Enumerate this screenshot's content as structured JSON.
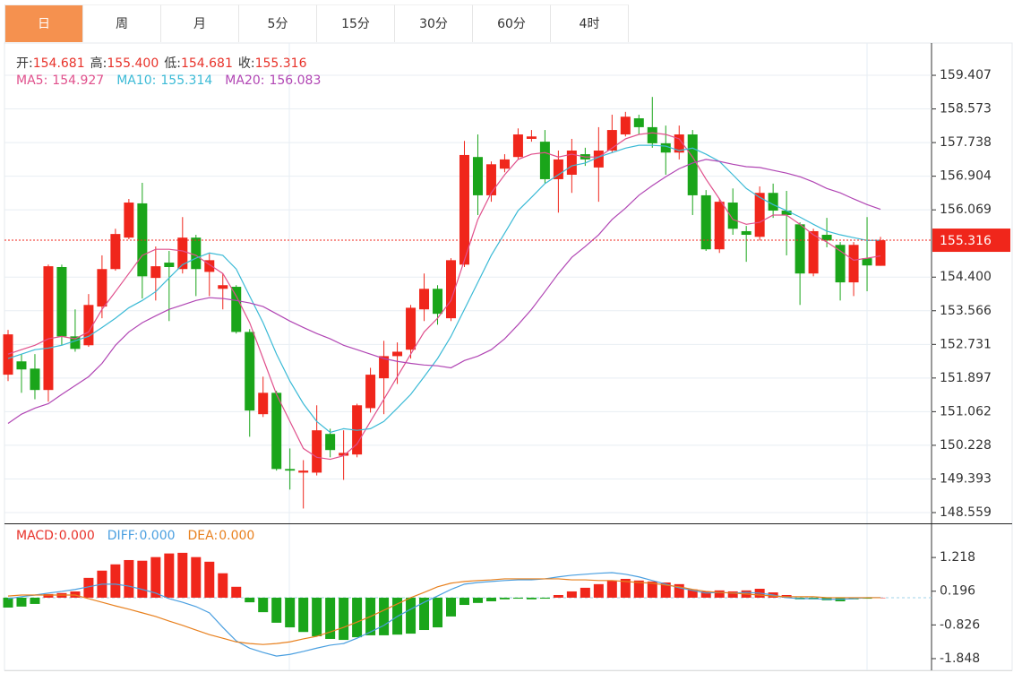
{
  "tabs": [
    "日",
    "周",
    "月",
    "5分",
    "15分",
    "30分",
    "60分",
    "4时"
  ],
  "active_tab": 0,
  "chart_data": [
    {
      "type": "candlestick",
      "info": [
        {
          "label": "开:",
          "value": "154.681"
        },
        {
          "label": "高:",
          "value": "155.400"
        },
        {
          "label": "低:",
          "value": "154.681"
        },
        {
          "label": "收:",
          "value": "155.316"
        }
      ],
      "info_label_color": "#333333",
      "info_value_color": "#e8322a",
      "up_color": "#f0261b",
      "down_color": "#1aa51a",
      "open": [
        151.98,
        152.31,
        152.13,
        151.6,
        154.65,
        152.93,
        152.71,
        153.67,
        154.6,
        155.38,
        156.23,
        154.38,
        154.76,
        154.6,
        155.38,
        154.53,
        154.11,
        154.16,
        153.04,
        151.0,
        151.53,
        149.64,
        149.55,
        149.55,
        150.51,
        149.97,
        150.0,
        151.15,
        151.89,
        152.44,
        152.6,
        153.6,
        154.11,
        153.38,
        154.71,
        157.38,
        156.43,
        157.09,
        157.38,
        157.83,
        157.76,
        156.83,
        156.94,
        157.45,
        157.12,
        157.54,
        157.94,
        158.34,
        158.12,
        157.72,
        157.49,
        157.94,
        156.43,
        155.09,
        156.25,
        155.54,
        155.4,
        156.49,
        156.05,
        155.71,
        154.49,
        155.45,
        155.2,
        154.27,
        154.87,
        154.681
      ],
      "high": [
        153.09,
        152.49,
        152.49,
        154.71,
        154.71,
        153.6,
        153.98,
        154.94,
        155.6,
        156.34,
        156.74,
        155.16,
        155.05,
        155.89,
        155.45,
        154.98,
        154.49,
        154.2,
        153.11,
        151.93,
        151.58,
        150.15,
        149.86,
        151.22,
        150.64,
        150.6,
        151.26,
        152.15,
        152.82,
        152.78,
        153.71,
        154.49,
        154.2,
        154.87,
        157.78,
        157.94,
        157.27,
        157.45,
        158.09,
        158.05,
        158.05,
        157.54,
        157.83,
        157.61,
        158.12,
        158.43,
        158.5,
        158.43,
        158.87,
        158.16,
        158.16,
        158.05,
        156.56,
        156.34,
        156.6,
        155.67,
        156.65,
        156.72,
        156.54,
        155.76,
        155.6,
        155.87,
        155.27,
        155.27,
        155.89,
        155.4
      ],
      "low": [
        151.82,
        151.53,
        151.37,
        151.31,
        152.71,
        152.55,
        152.67,
        153.38,
        154.56,
        155.34,
        153.87,
        153.82,
        153.31,
        154.49,
        153.93,
        153.93,
        153.6,
        153.0,
        150.44,
        150.93,
        149.6,
        149.13,
        148.66,
        149.48,
        149.93,
        149.37,
        149.93,
        151.04,
        151.0,
        151.75,
        152.38,
        153.31,
        153.22,
        153.31,
        154.65,
        155.94,
        156.27,
        157.0,
        157.32,
        157.76,
        156.72,
        156.0,
        156.49,
        157.16,
        156.27,
        157.49,
        157.89,
        157.94,
        157.61,
        156.94,
        157.32,
        155.94,
        155.05,
        155.0,
        155.45,
        154.78,
        155.31,
        155.87,
        154.94,
        153.71,
        154.42,
        155.14,
        153.82,
        153.93,
        154.05,
        154.681
      ],
      "close": [
        152.98,
        152.11,
        151.6,
        154.67,
        152.93,
        152.62,
        153.71,
        154.6,
        155.47,
        156.25,
        154.42,
        154.67,
        154.65,
        155.38,
        154.6,
        154.82,
        154.2,
        153.04,
        151.09,
        151.53,
        149.64,
        149.6,
        149.6,
        150.6,
        150.11,
        150.04,
        151.22,
        151.98,
        152.44,
        152.55,
        153.64,
        154.11,
        153.49,
        154.82,
        157.43,
        156.43,
        157.2,
        157.32,
        157.94,
        157.89,
        156.83,
        157.32,
        157.54,
        157.32,
        157.54,
        158.05,
        158.38,
        158.12,
        157.72,
        157.49,
        157.94,
        156.43,
        155.09,
        156.27,
        155.6,
        155.45,
        156.49,
        156.05,
        155.94,
        154.49,
        155.54,
        155.31,
        154.27,
        155.2,
        154.69,
        155.316
      ],
      "series": [
        {
          "label": "MA5:",
          "current": "154.927",
          "color": "#e0508c",
          "values": [
            152.49,
            152.6,
            152.71,
            152.87,
            152.93,
            152.87,
            153.04,
            153.6,
            154.04,
            154.49,
            154.94,
            155.09,
            155.09,
            155.05,
            154.94,
            154.71,
            154.49,
            153.93,
            153.27,
            152.38,
            151.49,
            150.82,
            150.15,
            149.93,
            149.88,
            149.97,
            150.26,
            150.82,
            151.37,
            151.93,
            152.49,
            153.04,
            153.38,
            153.82,
            154.82,
            155.83,
            156.49,
            156.94,
            157.32,
            157.45,
            157.49,
            157.38,
            157.45,
            157.38,
            157.38,
            157.6,
            157.83,
            157.94,
            157.98,
            157.94,
            157.83,
            157.38,
            156.83,
            156.34,
            155.83,
            155.71,
            155.76,
            155.94,
            155.94,
            155.71,
            155.45,
            155.27,
            155.05,
            154.82,
            154.87,
            154.927
          ]
        },
        {
          "label": "MA10:",
          "current": "155.314",
          "color": "#3bbad6",
          "values": [
            152.38,
            152.49,
            152.6,
            152.64,
            152.71,
            152.82,
            152.93,
            153.15,
            153.38,
            153.64,
            153.82,
            154.04,
            154.38,
            154.71,
            154.87,
            155.0,
            154.94,
            154.6,
            153.93,
            153.27,
            152.49,
            151.82,
            151.26,
            150.82,
            150.55,
            150.64,
            150.6,
            150.64,
            150.82,
            151.15,
            151.49,
            151.93,
            152.38,
            152.93,
            153.6,
            154.27,
            154.94,
            155.49,
            156.05,
            156.38,
            156.72,
            156.94,
            157.16,
            157.23,
            157.38,
            157.49,
            157.6,
            157.67,
            157.67,
            157.65,
            157.54,
            157.6,
            157.45,
            157.27,
            156.94,
            156.6,
            156.38,
            156.2,
            156.05,
            155.89,
            155.71,
            155.54,
            155.45,
            155.38,
            155.31,
            155.314
          ]
        },
        {
          "label": "MA20:",
          "current": "156.083",
          "color": "#b146b4",
          "values": [
            150.77,
            151.0,
            151.15,
            151.26,
            151.49,
            151.71,
            151.93,
            152.26,
            152.71,
            153.04,
            153.27,
            153.44,
            153.6,
            153.71,
            153.82,
            153.89,
            153.87,
            153.82,
            153.76,
            153.67,
            153.49,
            153.31,
            153.15,
            153.0,
            152.87,
            152.71,
            152.6,
            152.49,
            152.38,
            152.31,
            152.26,
            152.22,
            152.2,
            152.15,
            152.33,
            152.44,
            152.6,
            152.87,
            153.22,
            153.6,
            154.04,
            154.49,
            154.89,
            155.16,
            155.45,
            155.83,
            156.11,
            156.43,
            156.67,
            156.89,
            157.09,
            157.23,
            157.32,
            157.27,
            157.2,
            157.14,
            157.12,
            157.05,
            156.98,
            156.89,
            156.76,
            156.6,
            156.49,
            156.34,
            156.2,
            156.083
          ]
        }
      ],
      "last": 155.316,
      "last_color": "#f0261b",
      "ylim": [
        148.314,
        160.208
      ],
      "yticks": [
        148.559,
        149.393,
        150.228,
        151.062,
        151.897,
        152.731,
        153.566,
        {
          "value": 154.4,
          "label": "154.400"
        },
        156.069,
        156.904,
        157.738,
        158.573,
        159.407
      ],
      "grid": true
    },
    {
      "type": "macd",
      "up_color": "#f0261b",
      "down_color": "#1aa51a",
      "series": [
        {
          "label": "MACD:",
          "current": "0.000",
          "color": "#e8322a",
          "kind": "bar",
          "values": [
            -0.3,
            -0.27,
            -0.19,
            0.11,
            0.14,
            0.19,
            0.6,
            0.82,
            1.01,
            1.14,
            1.12,
            1.23,
            1.34,
            1.36,
            1.23,
            1.09,
            0.74,
            0.33,
            -0.14,
            -0.44,
            -0.76,
            -0.9,
            -1.04,
            -1.17,
            -1.25,
            -1.28,
            -1.2,
            -1.14,
            -1.14,
            -1.12,
            -1.09,
            -0.98,
            -0.9,
            -0.57,
            -0.22,
            -0.16,
            -0.11,
            -0.05,
            -0.03,
            -0.05,
            -0.03,
            0.08,
            0.19,
            0.3,
            0.41,
            0.52,
            0.57,
            0.52,
            0.49,
            0.46,
            0.41,
            0.25,
            0.19,
            0.22,
            0.19,
            0.22,
            0.27,
            0.16,
            0.08,
            -0.05,
            -0.05,
            -0.08,
            -0.11,
            -0.05,
            -0.03,
            0
          ]
        },
        {
          "label": "DIFF:",
          "current": "0.000",
          "color": "#4a9fe0",
          "kind": "line",
          "values": [
            -0.03,
            0.03,
            0.08,
            0.14,
            0.19,
            0.25,
            0.33,
            0.41,
            0.41,
            0.35,
            0.25,
            0.14,
            -0.03,
            -0.14,
            -0.27,
            -0.46,
            -0.9,
            -1.31,
            -1.53,
            -1.66,
            -1.77,
            -1.72,
            -1.63,
            -1.53,
            -1.44,
            -1.39,
            -1.23,
            -1.04,
            -0.84,
            -0.57,
            -0.35,
            -0.14,
            0.05,
            0.25,
            0.41,
            0.46,
            0.49,
            0.52,
            0.54,
            0.54,
            0.57,
            0.63,
            0.68,
            0.71,
            0.74,
            0.76,
            0.71,
            0.63,
            0.52,
            0.41,
            0.3,
            0.22,
            0.14,
            0.16,
            0.14,
            0.16,
            0.14,
            0.08,
            0,
            -0.03,
            -0.03,
            -0.05,
            -0.05,
            -0.03,
            0,
            0
          ]
        },
        {
          "label": "DEA:",
          "current": "0.000",
          "color": "#e8801e",
          "kind": "line",
          "values": [
            0.05,
            0.08,
            0.08,
            0.08,
            0.08,
            0.08,
            -0.03,
            -0.14,
            -0.25,
            -0.35,
            -0.46,
            -0.57,
            -0.71,
            -0.84,
            -0.98,
            -1.12,
            -1.23,
            -1.34,
            -1.39,
            -1.42,
            -1.39,
            -1.34,
            -1.25,
            -1.17,
            -1.04,
            -0.9,
            -0.74,
            -0.57,
            -0.38,
            -0.19,
            0,
            0.16,
            0.33,
            0.44,
            0.49,
            0.52,
            0.54,
            0.57,
            0.57,
            0.57,
            0.57,
            0.57,
            0.54,
            0.54,
            0.52,
            0.52,
            0.49,
            0.46,
            0.44,
            0.38,
            0.33,
            0.25,
            0.19,
            0.16,
            0.14,
            0.11,
            0.08,
            0.05,
            0.03,
            0.03,
            0.03,
            0,
            0,
            0,
            0,
            0
          ]
        }
      ],
      "ylim": [
        -2.202,
        2.226
      ],
      "yticks": [
        1.218,
        0.196,
        -0.826,
        -1.848
      ]
    }
  ]
}
